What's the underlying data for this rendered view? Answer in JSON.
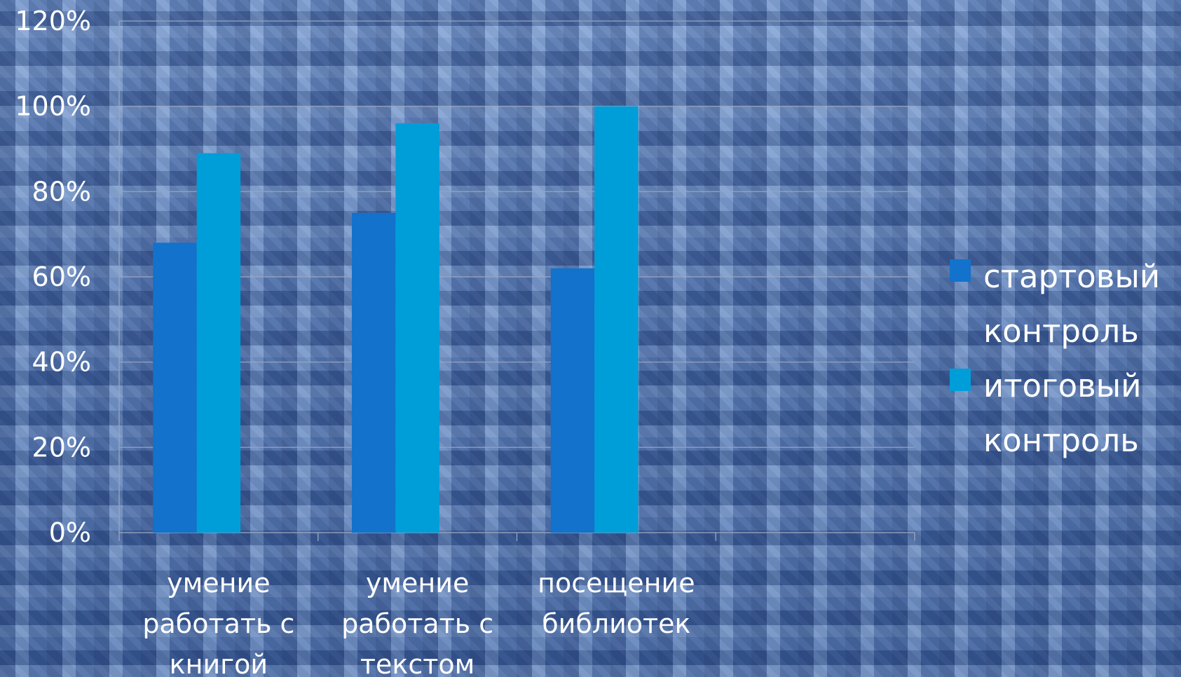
{
  "chart_data": {
    "type": "bar",
    "categories": [
      [
        "умение",
        "работать с",
        "книгой"
      ],
      [
        "умение",
        "работать с",
        "текстом"
      ],
      [
        "посещение",
        "библиотек"
      ],
      []
    ],
    "series": [
      {
        "name": "стартовый контроль",
        "values": [
          68,
          75,
          62,
          null
        ],
        "color": "#1272cc"
      },
      {
        "name": "итоговый контроль",
        "values": [
          89,
          96,
          100,
          null
        ],
        "color": "#009ed9"
      }
    ],
    "yticks": [
      "0%",
      "20%",
      "40%",
      "60%",
      "80%",
      "100%",
      "120%"
    ],
    "ylim": [
      0,
      120
    ],
    "grid": true,
    "legend": "right",
    "legend_lines": [
      [
        "стартовый",
        "контроль"
      ],
      [
        "итоговый",
        "контроль"
      ]
    ]
  }
}
